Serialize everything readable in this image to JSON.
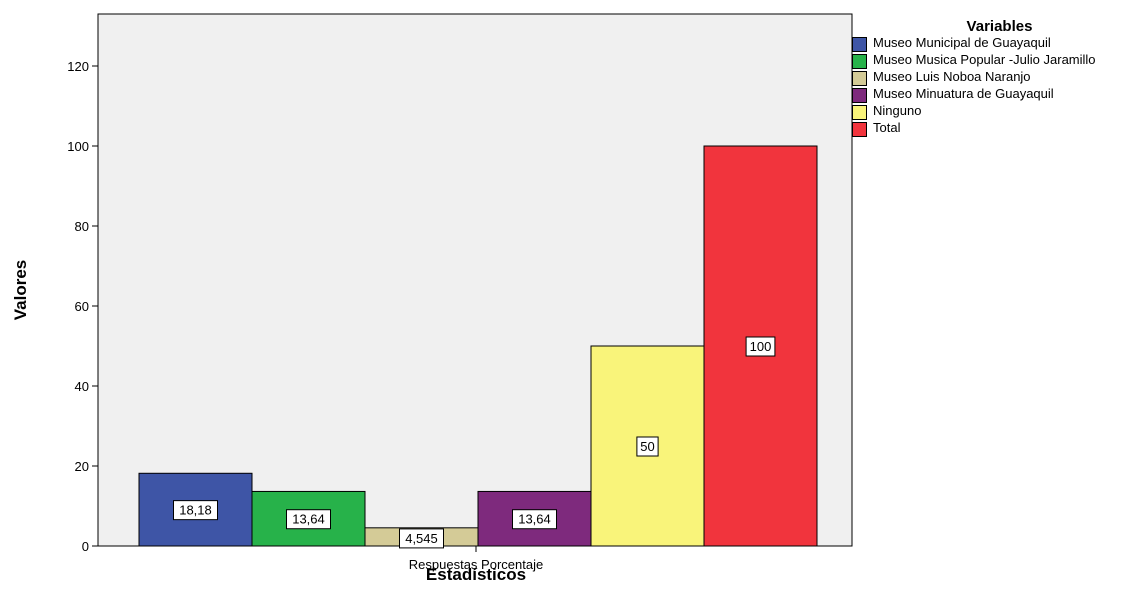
{
  "chart_data": {
    "type": "bar",
    "categories": [
      "Respuestas Porcentaje"
    ],
    "series": [
      {
        "name": "Museo Municipal de Guayaquil",
        "value": 18.18,
        "label": "18,18",
        "color": "#3e55a6"
      },
      {
        "name": "Museo Musica Popular -Julio Jaramillo",
        "value": 13.64,
        "label": "13,64",
        "color": "#27b24a"
      },
      {
        "name": "Museo Luis Noboa Naranjo",
        "value": 4.545,
        "label": "4,545",
        "color": "#d4cb97"
      },
      {
        "name": "Museo Minuatura de Guayaquil",
        "value": 13.64,
        "label": "13,64",
        "color": "#7e2a7d"
      },
      {
        "name": "Ninguno",
        "value": 50,
        "label": "50",
        "color": "#f9f47a"
      },
      {
        "name": "Total",
        "value": 100,
        "label": "100",
        "color": "#f1343d"
      }
    ],
    "xlabel": "Estadísticos",
    "ylabel": "Valores",
    "ylim": [
      0,
      133
    ],
    "yticks": [
      0,
      20,
      40,
      60,
      80,
      100,
      120
    ],
    "legend_title": "Variables",
    "legend_position": "right",
    "plot_background": "#f0f0f0",
    "grid": false
  }
}
